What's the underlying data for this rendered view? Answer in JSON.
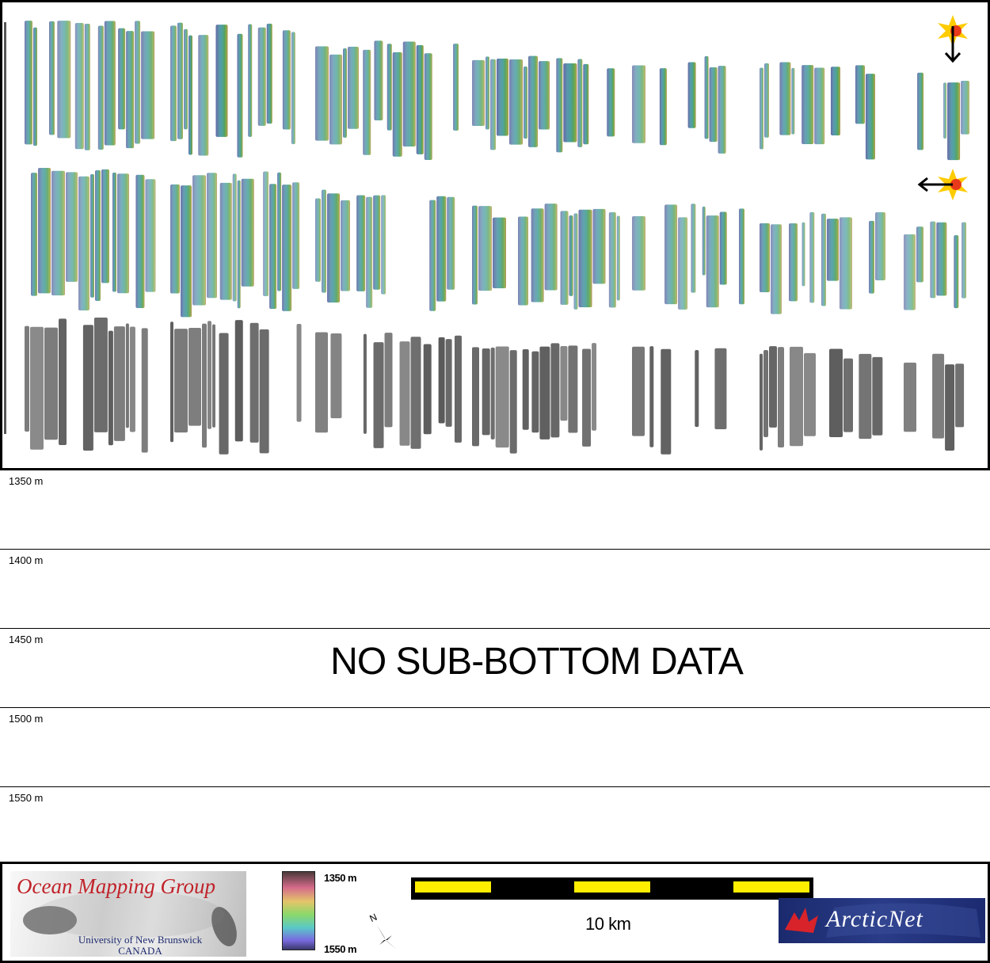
{
  "depth_rows": [
    {
      "label": "1350 m"
    },
    {
      "label": "1400 m"
    },
    {
      "label": "1450 m"
    },
    {
      "label": "1500 m"
    },
    {
      "label": "1550 m"
    }
  ],
  "message": "NO SUB-BOTTOM DATA",
  "map": {
    "rows": [
      "bathymetry-sun-north",
      "bathymetry-sun-west",
      "backscatter"
    ],
    "illumination_icons": [
      "sun-arrow-down-icon",
      "sun-arrow-left-icon"
    ],
    "colors": {
      "deep": "#4a4f8a",
      "mid": "#3e9a9a",
      "shallow": "#6aa44a",
      "accent": "#c8743a"
    }
  },
  "footer": {
    "omg": {
      "title": "Ocean Mapping Group",
      "line1": "University of New Brunswick",
      "line2": "CANADA"
    },
    "colorbar": {
      "top": "1350 m",
      "bottom": "1550 m"
    },
    "north_label": "N",
    "scale": {
      "label": "10 km",
      "scale_color": "#ffee00"
    },
    "arcticnet": {
      "text": "ArcticNet"
    }
  }
}
